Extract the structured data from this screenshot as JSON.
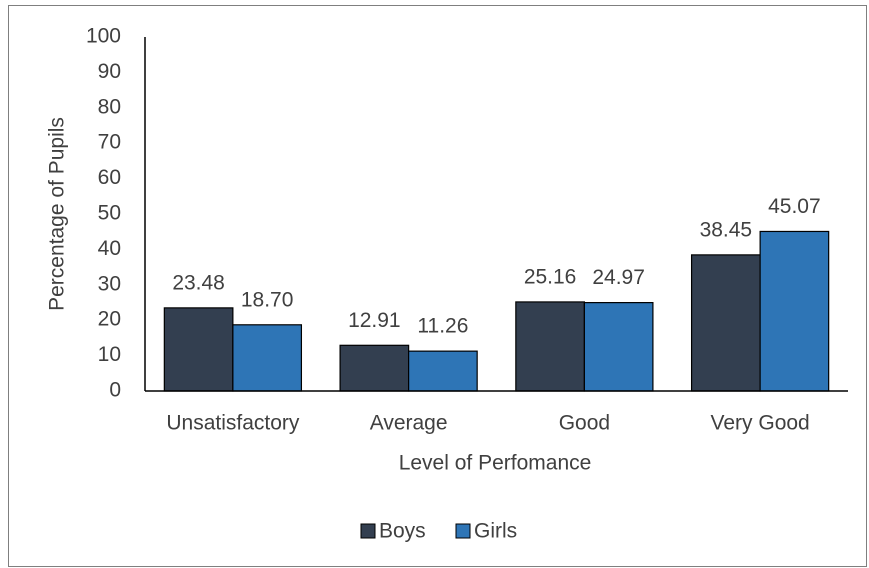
{
  "chart_data": {
    "type": "bar",
    "xlabel": "Level of Perfomance",
    "ylabel": "Percentage of Pupils",
    "categories": [
      "Unsatisfactory",
      "Average",
      "Good",
      "Very Good"
    ],
    "series": [
      {
        "name": "Boys",
        "color": "#333f50",
        "values": [
          23.48,
          12.91,
          25.16,
          38.45
        ],
        "value_labels": [
          "23.48",
          "12.91",
          "25.16",
          "38.45"
        ]
      },
      {
        "name": "Girls",
        "color": "#2e75b6",
        "values": [
          18.7,
          11.26,
          24.97,
          45.07
        ],
        "value_labels": [
          "18.70",
          "11.26",
          "24.97",
          "45.07"
        ]
      }
    ],
    "ylim": [
      0,
      100
    ],
    "yticks": [
      0,
      10,
      20,
      30,
      40,
      50,
      60,
      70,
      80,
      90,
      100
    ],
    "grid": false,
    "legend": "bottom"
  }
}
